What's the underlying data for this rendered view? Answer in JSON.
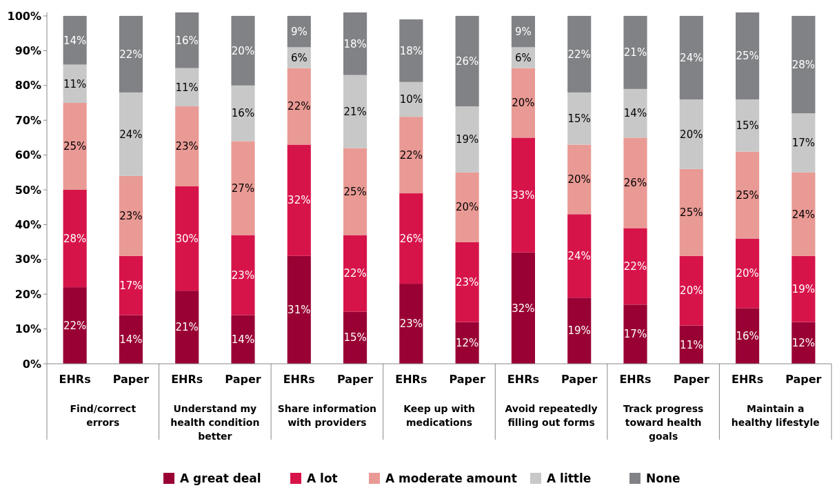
{
  "chart_data": {
    "type": "bar",
    "stacked": true,
    "categories": [
      "EHRs",
      "Paper",
      "EHRs",
      "Paper",
      "EHRs",
      "Paper",
      "EHRs",
      "Paper",
      "EHRs",
      "Paper",
      "EHRs",
      "Paper",
      "EHRs",
      "Paper"
    ],
    "annotations": [
      "Find/correct errors",
      "Understand my health condition better",
      "Share information with providers",
      "Keep up with medications",
      "Avoid repeatedly filling out forms",
      "Track progress toward health goals",
      "Maintain a healthy lifestyle"
    ],
    "series": [
      {
        "name": "A great deal",
        "color": "#990033",
        "values": [
          22,
          14,
          21,
          14,
          31,
          15,
          23,
          12,
          32,
          19,
          17,
          11,
          16,
          12
        ],
        "value_labels": [
          "22%",
          "14%",
          "21%",
          "14%",
          "31%",
          "15%",
          "23%",
          "12%",
          "32%",
          "19%",
          "17%",
          "11%",
          "16%",
          "12%"
        ]
      },
      {
        "name": "A lot",
        "color": "#d7144a",
        "values": [
          28,
          17,
          30,
          23,
          32,
          22,
          26,
          23,
          33,
          24,
          22,
          20,
          20,
          19
        ],
        "value_labels": [
          "28%",
          "17%",
          "30%",
          "23%",
          "32%",
          "22%",
          "26%",
          "23%",
          "33%",
          "24%",
          "22%",
          "20%",
          "20%",
          "19%"
        ]
      },
      {
        "name": "A moderate amount",
        "color": "#e99a95",
        "values": [
          25,
          23,
          23,
          27,
          22,
          25,
          22,
          20,
          20,
          20,
          26,
          25,
          25,
          24
        ],
        "value_labels": [
          "25%",
          "23%",
          "23%",
          "27%",
          "22%",
          "25%",
          "22%",
          "20%",
          "20%",
          "20%",
          "26%",
          "25%",
          "25%",
          "24%"
        ]
      },
      {
        "name": "A little",
        "color": "#c8c8c8",
        "values": [
          11,
          24,
          11,
          16,
          6,
          21,
          10,
          19,
          6,
          15,
          14,
          20,
          15,
          17
        ],
        "value_labels": [
          "11%",
          "24%",
          "11%",
          "16%",
          "6%",
          "21%",
          "10%",
          "19%",
          "6%",
          "15%",
          "14%",
          "20%",
          "15%",
          "17%"
        ]
      },
      {
        "name": "None",
        "color": "#808285",
        "values": [
          14,
          22,
          16,
          20,
          9,
          18,
          18,
          26,
          9,
          22,
          21,
          24,
          25,
          28
        ],
        "value_labels": [
          "14%",
          "22%",
          "16%",
          "20%",
          "9%",
          "18%",
          "18%",
          "26%",
          "9%",
          "22%",
          "21%",
          "24%",
          "25%",
          "28%"
        ]
      }
    ],
    "ylim": [
      0,
      101
    ],
    "yticks": [
      {
        "value": 0,
        "label": "0%"
      },
      {
        "value": 10,
        "label": "10%"
      },
      {
        "value": 20,
        "label": "20%"
      },
      {
        "value": 30,
        "label": "30%"
      },
      {
        "value": 40,
        "label": "40%"
      },
      {
        "value": 50,
        "label": "50%"
      },
      {
        "value": 60,
        "label": "60%"
      },
      {
        "value": 70,
        "label": "70%"
      },
      {
        "value": 80,
        "label": "80%"
      },
      {
        "value": 90,
        "label": "90%"
      },
      {
        "value": 100,
        "label": "100%"
      }
    ],
    "grid": false,
    "legend": "bottom"
  }
}
